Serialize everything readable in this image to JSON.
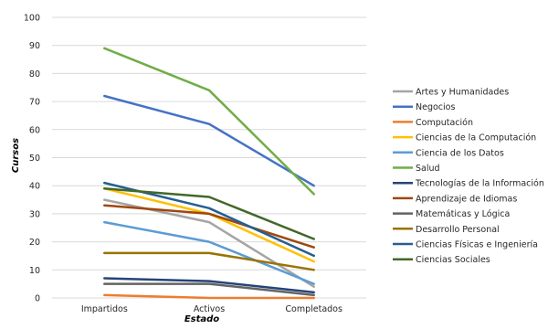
{
  "chart_data": {
    "type": "line",
    "title": "",
    "xlabel": "Estado",
    "ylabel": "Cursos",
    "ylim": [
      0,
      100
    ],
    "yticks": [
      0,
      10,
      20,
      30,
      40,
      50,
      60,
      70,
      80,
      90,
      100
    ],
    "categories": [
      "Impartidos",
      "Activos",
      "Completados"
    ],
    "grid": true,
    "legend_position": "right",
    "series": [
      {
        "name": "Artes y Humanidades",
        "color": "#a5a5a5",
        "values": [
          35,
          27,
          4
        ]
      },
      {
        "name": "Negocios",
        "color": "#4472c4",
        "values": [
          72,
          62,
          40
        ]
      },
      {
        "name": "Computación",
        "color": "#ed7d31",
        "values": [
          1,
          0,
          0
        ]
      },
      {
        "name": "Ciencias de la Computación",
        "color": "#ffc000",
        "values": [
          39,
          30,
          13
        ]
      },
      {
        "name": "Ciencia de los Datos",
        "color": "#5b9bd5",
        "values": [
          27,
          20,
          5
        ]
      },
      {
        "name": "Salud",
        "color": "#70ad47",
        "values": [
          89,
          74,
          37
        ]
      },
      {
        "name": "Tecnologías de la Información",
        "color": "#264478",
        "values": [
          7,
          6,
          2
        ]
      },
      {
        "name": "Aprendizaje de Idiomas",
        "color": "#9e480e",
        "values": [
          33,
          30,
          18
        ]
      },
      {
        "name": "Matemáticas y Lógica",
        "color": "#636363",
        "values": [
          5,
          5,
          1
        ]
      },
      {
        "name": "Desarrollo Personal",
        "color": "#997300",
        "values": [
          16,
          16,
          10
        ]
      },
      {
        "name": "Ciencias Físicas e Ingeniería",
        "color": "#255e91",
        "values": [
          41,
          32,
          15
        ]
      },
      {
        "name": "Ciencias Sociales",
        "color": "#43682b",
        "values": [
          39,
          36,
          21
        ]
      }
    ]
  }
}
